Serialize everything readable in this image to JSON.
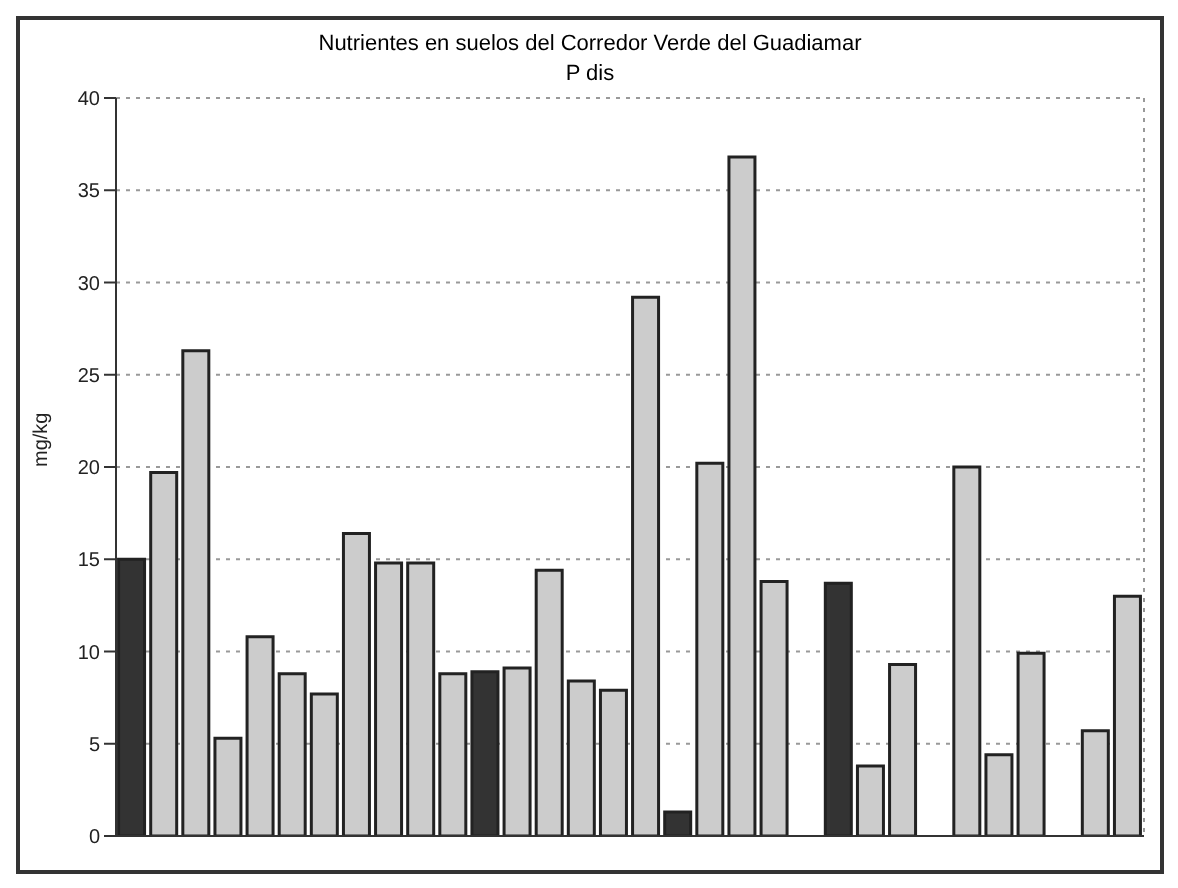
{
  "chart_data": {
    "type": "bar",
    "title": "Nutrientes en suelos del Corredor Verde del Guadiamar",
    "subtitle": "P dis",
    "ylabel": "mg/kg",
    "categories": [
      null,
      null,
      null,
      null,
      null,
      null,
      null,
      null,
      null,
      null,
      null,
      null,
      null,
      null,
      null,
      null,
      null,
      null,
      null,
      null,
      null,
      null,
      null,
      null,
      null,
      null,
      null,
      null,
      null,
      null,
      null,
      null
    ],
    "values": [
      15,
      19.7,
      26.3,
      5.3,
      10.8,
      8.8,
      7.7,
      16.4,
      14.8,
      14.8,
      8.8,
      8.9,
      9.1,
      14.4,
      8.4,
      7.9,
      29.2,
      1.3,
      20.2,
      36.8,
      13.8,
      null,
      13.7,
      3.8,
      9.3,
      null,
      20,
      4.4,
      9.9,
      null,
      5.7,
      13
    ],
    "colors": [
      "#333333",
      "#cccccc",
      "#cccccc",
      "#cccccc",
      "#cccccc",
      "#cccccc",
      "#cccccc",
      "#cccccc",
      "#cccccc",
      "#cccccc",
      "#cccccc",
      "#333333",
      "#cccccc",
      "#cccccc",
      "#cccccc",
      "#cccccc",
      "#cccccc",
      "#333333",
      "#cccccc",
      "#cccccc",
      "#cccccc",
      "#cccccc",
      "#333333",
      "#cccccc",
      "#cccccc",
      "#cccccc",
      "#cccccc",
      "#cccccc",
      "#cccccc",
      "#cccccc",
      "#cccccc",
      "#cccccc"
    ],
    "ylim": [
      0,
      40
    ],
    "yticks": [
      0,
      5,
      10,
      15,
      20,
      25,
      30,
      35,
      40
    ],
    "grid": true,
    "tick_labels": "y"
  }
}
